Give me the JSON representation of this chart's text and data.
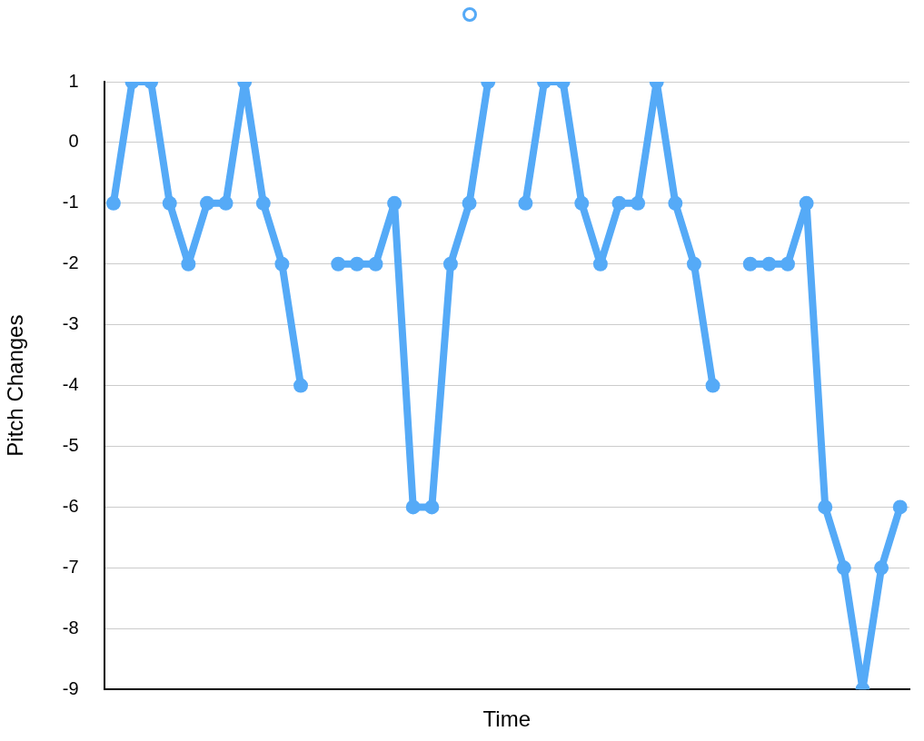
{
  "chart_data": {
    "type": "line",
    "xlabel": "Time",
    "ylabel": "Pitch Changes",
    "categories": [
      null,
      null,
      null,
      null,
      null,
      null,
      null,
      null,
      null,
      null,
      null,
      null,
      null,
      null,
      null,
      null,
      null,
      null,
      null,
      null,
      null,
      null,
      null,
      null,
      null,
      null,
      null,
      null,
      null,
      null,
      null,
      null,
      null,
      null,
      null,
      null,
      null,
      null,
      null,
      null,
      null,
      null,
      null
    ],
    "series": [
      {
        "color": "#55aaf7",
        "values": [
          -1,
          1,
          1,
          -1,
          -2,
          -1,
          -1,
          1,
          -1,
          -2,
          -4,
          null,
          -2,
          -2,
          -2,
          -1,
          -6,
          -6,
          -2,
          -1,
          1,
          null,
          -1,
          1,
          1,
          -1,
          -2,
          -1,
          -1,
          1,
          -1,
          -2,
          -4,
          null,
          -2,
          -2,
          -2,
          -1,
          -6,
          -7,
          -9,
          -7,
          -6
        ]
      }
    ],
    "ylim": [
      -9,
      1
    ],
    "yticks": [
      -9,
      -8,
      -7,
      -6,
      -5,
      -4,
      -3,
      -2,
      -1,
      0,
      1
    ],
    "grid": "y",
    "marker": "circle",
    "line_style": "solid",
    "tick_labels": "y"
  }
}
